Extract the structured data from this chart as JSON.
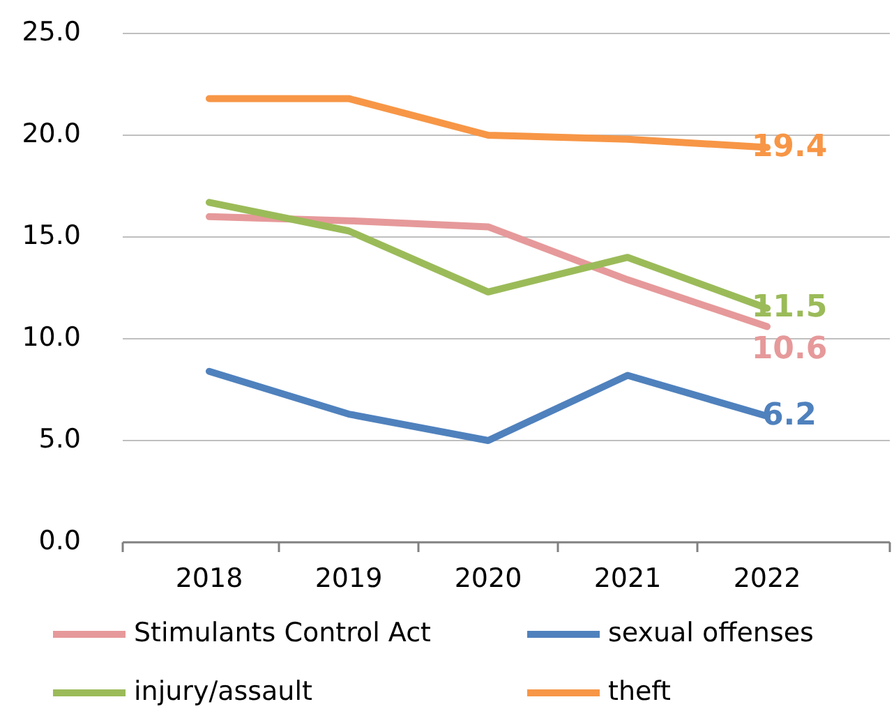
{
  "chart_data": {
    "type": "line",
    "categories": [
      "2018",
      "2019",
      "2020",
      "2021",
      "2022"
    ],
    "series": [
      {
        "name": "Stimulants Control Act",
        "color": "#e6999a",
        "values": [
          16.0,
          15.8,
          15.5,
          12.9,
          10.6
        ],
        "value_labels": [
          null,
          null,
          null,
          null,
          "10.6"
        ]
      },
      {
        "name": "sexual offenses",
        "color": "#4f81bd",
        "values": [
          8.4,
          6.3,
          5.0,
          8.2,
          6.2
        ],
        "value_labels": [
          null,
          null,
          null,
          null,
          "6.2"
        ]
      },
      {
        "name": "injury/assault",
        "color": "#9bbb59",
        "values": [
          16.7,
          15.3,
          12.3,
          14.0,
          11.5
        ],
        "value_labels": [
          null,
          null,
          null,
          null,
          "11.5"
        ]
      },
      {
        "name": "theft",
        "color": "#f79646",
        "values": [
          21.8,
          21.8,
          20.0,
          19.8,
          19.4
        ],
        "value_labels": [
          null,
          null,
          null,
          null,
          "19.4"
        ]
      }
    ],
    "ylim": [
      0,
      25
    ],
    "yticks": [
      {
        "value": 0,
        "label": "0.0"
      },
      {
        "value": 5,
        "label": "5.0"
      },
      {
        "value": 10,
        "label": "10.0"
      },
      {
        "value": 15,
        "label": "15.0"
      },
      {
        "value": 20,
        "label": "20.0"
      },
      {
        "value": 25,
        "label": "25.0"
      }
    ],
    "grid": "y",
    "legend": "bottom",
    "marker": "none",
    "line_style": "solid"
  }
}
